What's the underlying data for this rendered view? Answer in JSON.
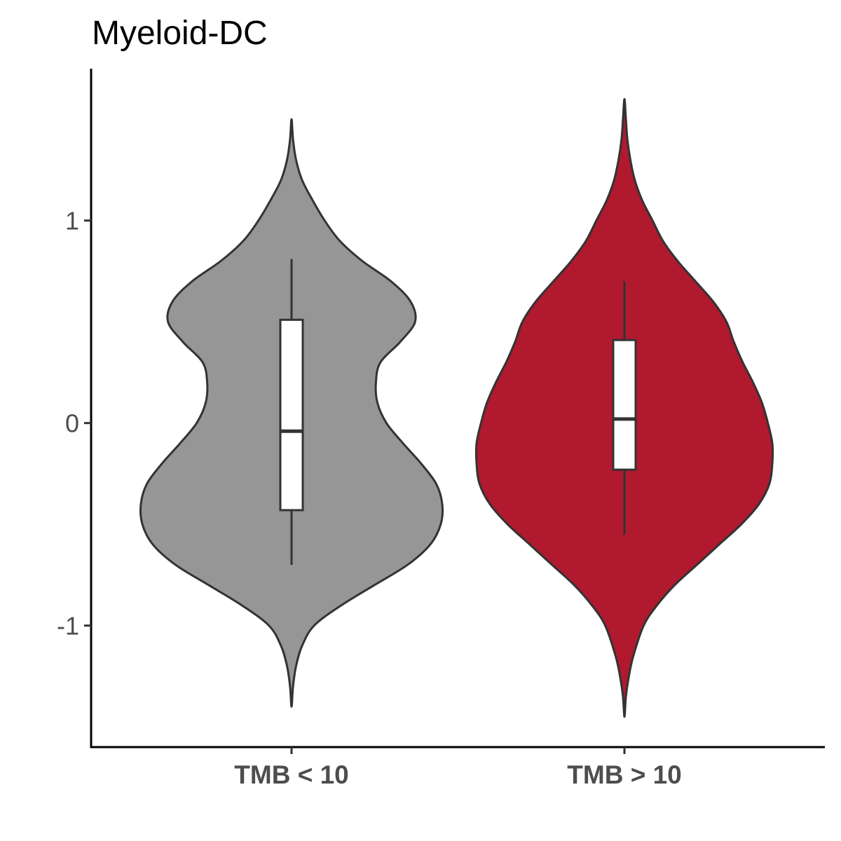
{
  "chart_data": {
    "type": "violin",
    "title": "Myeloid-DC",
    "xlabel": "",
    "ylabel": "",
    "ylim": [
      -1.6,
      1.75
    ],
    "y_ticks": [
      {
        "value": 1,
        "label": "1"
      },
      {
        "value": 0,
        "label": "0"
      },
      {
        "value": -1,
        "label": "-1"
      }
    ],
    "categories": [
      "TMB < 10",
      "TMB > 10"
    ],
    "colors": {
      "TMB < 10": "#969696",
      "TMB > 10": "#b0192e",
      "outline": "#333333",
      "box_fill": "#ffffff",
      "axis": "#000000"
    },
    "groups": [
      {
        "category": "TMB < 10",
        "box": {
          "whisker_low": -0.7,
          "q1": -0.43,
          "median": -0.04,
          "q3": 0.51,
          "whisker_high": 0.81
        },
        "violin": {
          "min": -1.4,
          "max": 1.5,
          "profile": [
            [
              -1.4,
              0.0
            ],
            [
              -1.3,
              0.01
            ],
            [
              -1.2,
              0.03
            ],
            [
              -1.1,
              0.07
            ],
            [
              -1.0,
              0.15
            ],
            [
              -0.9,
              0.33
            ],
            [
              -0.8,
              0.55
            ],
            [
              -0.7,
              0.77
            ],
            [
              -0.6,
              0.92
            ],
            [
              -0.5,
              0.99
            ],
            [
              -0.4,
              1.0
            ],
            [
              -0.3,
              0.96
            ],
            [
              -0.2,
              0.86
            ],
            [
              -0.1,
              0.74
            ],
            [
              0.0,
              0.63
            ],
            [
              0.1,
              0.57
            ],
            [
              0.2,
              0.56
            ],
            [
              0.3,
              0.59
            ],
            [
              0.4,
              0.72
            ],
            [
              0.5,
              0.82
            ],
            [
              0.6,
              0.79
            ],
            [
              0.7,
              0.66
            ],
            [
              0.8,
              0.47
            ],
            [
              0.9,
              0.32
            ],
            [
              1.0,
              0.22
            ],
            [
              1.1,
              0.14
            ],
            [
              1.2,
              0.07
            ],
            [
              1.3,
              0.03
            ],
            [
              1.4,
              0.01
            ],
            [
              1.5,
              0.0
            ]
          ]
        }
      },
      {
        "category": "TMB > 10",
        "box": {
          "whisker_low": -0.55,
          "q1": -0.23,
          "median": 0.02,
          "q3": 0.41,
          "whisker_high": 0.7
        },
        "violin": {
          "min": -1.45,
          "max": 1.6,
          "profile": [
            [
              -1.45,
              0.0
            ],
            [
              -1.35,
              0.01
            ],
            [
              -1.25,
              0.03
            ],
            [
              -1.15,
              0.06
            ],
            [
              -1.0,
              0.13
            ],
            [
              -0.9,
              0.22
            ],
            [
              -0.8,
              0.34
            ],
            [
              -0.7,
              0.49
            ],
            [
              -0.6,
              0.64
            ],
            [
              -0.5,
              0.79
            ],
            [
              -0.4,
              0.91
            ],
            [
              -0.3,
              0.98
            ],
            [
              -0.2,
              1.0
            ],
            [
              -0.1,
              1.0
            ],
            [
              0.0,
              0.97
            ],
            [
              0.1,
              0.93
            ],
            [
              0.2,
              0.87
            ],
            [
              0.3,
              0.8
            ],
            [
              0.4,
              0.74
            ],
            [
              0.5,
              0.69
            ],
            [
              0.6,
              0.6
            ],
            [
              0.7,
              0.48
            ],
            [
              0.8,
              0.36
            ],
            [
              0.9,
              0.26
            ],
            [
              1.0,
              0.19
            ],
            [
              1.1,
              0.12
            ],
            [
              1.2,
              0.07
            ],
            [
              1.3,
              0.04
            ],
            [
              1.4,
              0.02
            ],
            [
              1.5,
              0.01
            ],
            [
              1.6,
              0.0
            ]
          ]
        }
      }
    ]
  }
}
